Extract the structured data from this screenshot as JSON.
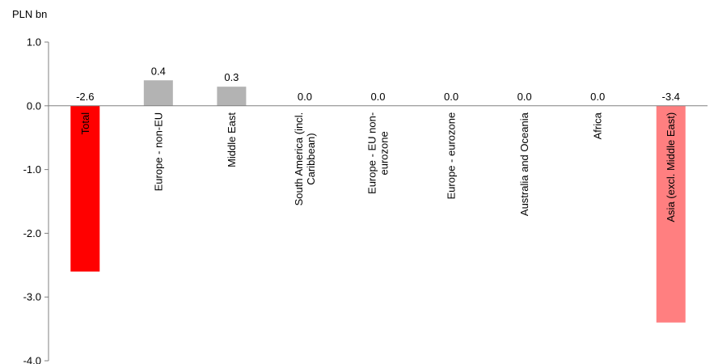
{
  "chart_data": {
    "type": "bar",
    "unit_label": "PLN bn",
    "categories": [
      "Total",
      "Europe - non-EU",
      "Middle East",
      "South America (incl. Caribbean)",
      "Europe - EU non-eurozone",
      "Europe - eurozone",
      "Australia and Oceania",
      "Africa",
      "Asia (excl. Middle East)"
    ],
    "category_label_lines": [
      [
        "Total"
      ],
      [
        "Europe - non-EU"
      ],
      [
        "Middle East"
      ],
      [
        "South America (incl.",
        "Caribbean)"
      ],
      [
        "Europe - EU non-",
        "eurozone"
      ],
      [
        "Europe - eurozone"
      ],
      [
        "Australia and Oceania"
      ],
      [
        "Africa"
      ],
      [
        "Asia (excl. Middle East)"
      ]
    ],
    "values": [
      -2.6,
      0.4,
      0.3,
      0.0,
      0.0,
      0.0,
      0.0,
      0.0,
      -3.4
    ],
    "value_labels": [
      "-2.6",
      "0.4",
      "0.3",
      "0.0",
      "0.0",
      "0.0",
      "0.0",
      "0.0",
      "-3.4"
    ],
    "bar_colors": [
      "#ff0000",
      "#b3b3b3",
      "#b3b3b3",
      "#b3b3b3",
      "#b3b3b3",
      "#b3b3b3",
      "#b3b3b3",
      "#b3b3b3",
      "#ff7f80"
    ],
    "ylim": [
      -4.0,
      1.0
    ],
    "yticks": [
      1.0,
      0.0,
      -1.0,
      -2.0,
      -3.0,
      -4.0
    ],
    "ytick_labels": [
      "1.0",
      "0.0",
      "-1.0",
      "-2.0",
      "-3.0",
      "-4.0"
    ],
    "grid": false,
    "legend": "none"
  }
}
